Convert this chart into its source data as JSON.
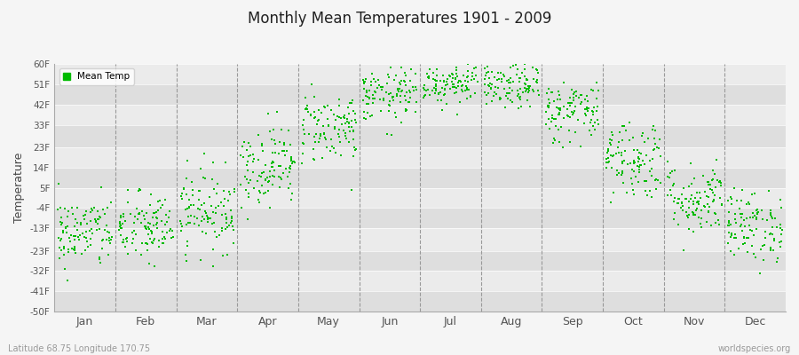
{
  "title": "Monthly Mean Temperatures 1901 - 2009",
  "ylabel": "Temperature",
  "subtitle": "Latitude 68.75 Longitude 170.75",
  "watermark": "worldspecies.org",
  "legend_label": "Mean Temp",
  "dot_color": "#00bb00",
  "background_color": "#f5f5f5",
  "plot_bg_light": "#ebebeb",
  "plot_bg_dark": "#dedede",
  "yticks": [
    -50,
    -41,
    -32,
    -23,
    -13,
    -4,
    5,
    14,
    23,
    33,
    42,
    51,
    60
  ],
  "ytick_labels": [
    "-50F",
    "-41F",
    "-32F",
    "-23F",
    "-13F",
    "-4F",
    "5F",
    "14F",
    "23F",
    "33F",
    "42F",
    "51F",
    "60F"
  ],
  "month_names": [
    "Jan",
    "Feb",
    "Mar",
    "Apr",
    "May",
    "Jun",
    "Jul",
    "Aug",
    "Sep",
    "Oct",
    "Nov",
    "Dec"
  ],
  "month_means_F": [
    -15,
    -13,
    -5,
    15,
    32,
    46,
    52,
    50,
    39,
    18,
    0,
    -12
  ],
  "month_stds_F": [
    8,
    8,
    9,
    9,
    8,
    6,
    5,
    5,
    7,
    9,
    8,
    8
  ],
  "n_points": 109,
  "seed": 42
}
